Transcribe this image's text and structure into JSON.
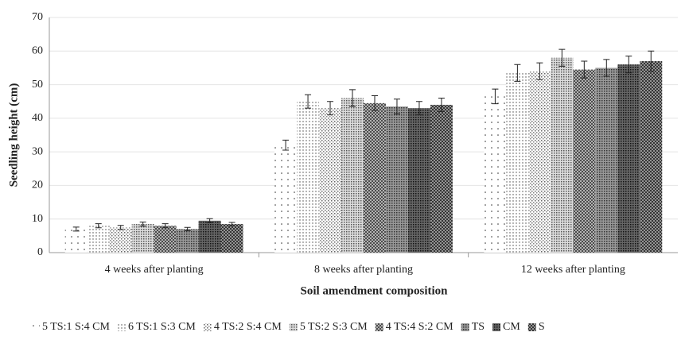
{
  "chart_data": {
    "type": "bar",
    "x_label": "Soil amendment composition",
    "y_label": "Seedling height (cm)",
    "categories": [
      "4 weeks after planting",
      "8 weeks after planting",
      "12 weeks after planting"
    ],
    "series": [
      {
        "name": "5 TS:1 S:4 CM",
        "values": [
          7,
          32,
          46.5
        ],
        "errors": [
          0.6,
          1.5,
          2.2
        ]
      },
      {
        "name": "6 TS:1 S:3 CM",
        "values": [
          8,
          45,
          53.5
        ],
        "errors": [
          0.6,
          2,
          2.5
        ]
      },
      {
        "name": "4 TS:2 S:4 CM",
        "values": [
          7.5,
          43,
          54
        ],
        "errors": [
          0.6,
          2,
          2.5
        ]
      },
      {
        "name": "5 TS:2 S:3 CM",
        "values": [
          8.5,
          46,
          58
        ],
        "errors": [
          0.6,
          2.5,
          2.5
        ]
      },
      {
        "name": "4 TS:4 S:2 CM",
        "values": [
          8,
          44.5,
          54.5
        ],
        "errors": [
          0.6,
          2.2,
          2.5
        ]
      },
      {
        "name": "TS",
        "values": [
          7,
          43.5,
          55
        ],
        "errors": [
          0.5,
          2.2,
          2.5
        ]
      },
      {
        "name": "CM",
        "values": [
          9.5,
          43,
          56
        ],
        "errors": [
          0.6,
          2,
          2.5
        ]
      },
      {
        "name": "S",
        "values": [
          8.5,
          44,
          57
        ],
        "errors": [
          0.5,
          2,
          3
        ]
      }
    ],
    "ylim": [
      0,
      70
    ],
    "yticks": [
      0,
      10,
      20,
      30,
      40,
      50,
      60,
      70
    ],
    "grid": true
  }
}
